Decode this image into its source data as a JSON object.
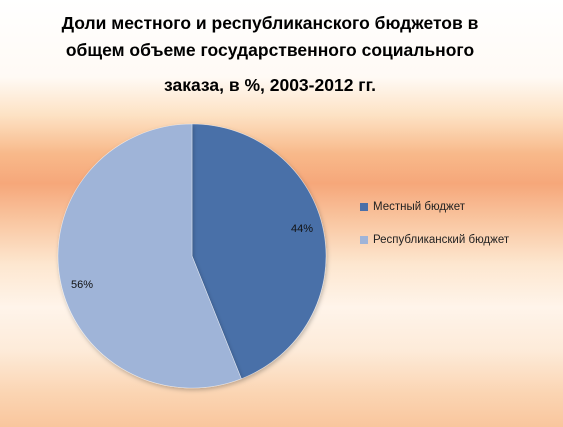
{
  "chart_data": {
    "type": "pie",
    "title_lines": [
      "Доли местного и республиканского бюджетов в",
      "общем объеме  государственного социального",
      "заказа, в %, 2003-2012 гг."
    ],
    "slices": [
      {
        "name": "Местный бюджет",
        "value": 44,
        "label": "44%",
        "color": "#4a6fa8"
      },
      {
        "name": "Республиканский бюджет",
        "value": 56,
        "label": "56%",
        "color": "#9fb4d8"
      }
    ],
    "legend_position": "right",
    "start_angle_deg": 0,
    "direction": "clockwise"
  }
}
